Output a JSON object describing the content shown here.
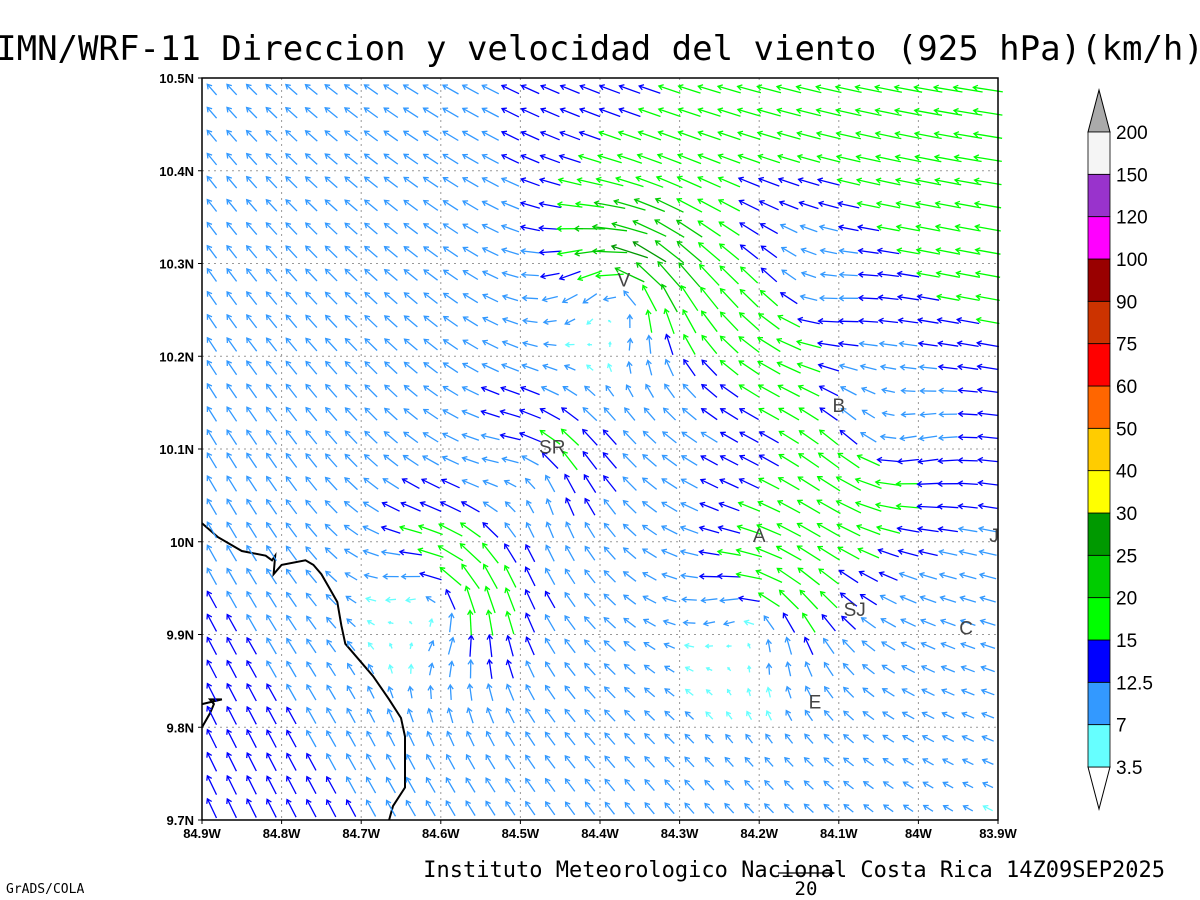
{
  "title": "IMN/WRF-11 Direccion y velocidad del viento (925 hPa)(km/h)",
  "footer": {
    "credit": "Instituto Meteorologico Nacional Costa Rica 14Z09SEP2025",
    "software": "GrADS/COLA",
    "reference_vector_label": "20"
  },
  "map": {
    "lon_range": [
      -84.9,
      -83.9
    ],
    "lat_range": [
      9.7,
      10.5
    ],
    "x_tick_labels": [
      "84.9W",
      "84.8W",
      "84.7W",
      "84.6W",
      "84.5W",
      "84.4W",
      "84.3W",
      "84.2W",
      "84.1W",
      "84W",
      "83.9W"
    ],
    "y_tick_labels": [
      "10.5N",
      "10.4N",
      "10.3N",
      "10.2N",
      "10.1N",
      "10N",
      "9.9N",
      "9.8N",
      "9.7N"
    ],
    "grid": "dotted",
    "places": [
      {
        "label": "V",
        "lon": -84.37,
        "lat": 10.275
      },
      {
        "label": "B",
        "lon": -84.1,
        "lat": 10.14
      },
      {
        "label": "SR",
        "lon": -84.46,
        "lat": 10.095
      },
      {
        "label": "A",
        "lon": -84.2,
        "lat": 10.0
      },
      {
        "label": "SJ",
        "lon": -84.08,
        "lat": 9.92
      },
      {
        "label": "C",
        "lon": -83.94,
        "lat": 9.9
      },
      {
        "label": "E",
        "lon": -84.13,
        "lat": 9.82
      },
      {
        "label": "J",
        "lon": -83.905,
        "lat": 10.0
      }
    ],
    "coastline": [
      [
        -84.9,
        10.02
      ],
      [
        -84.88,
        10.005
      ],
      [
        -84.85,
        9.99
      ],
      [
        -84.82,
        9.985
      ],
      [
        -84.812,
        9.98
      ],
      [
        -84.808,
        9.985
      ],
      [
        -84.81,
        9.965
      ],
      [
        -84.8,
        9.975
      ],
      [
        -84.77,
        9.98
      ],
      [
        -84.76,
        9.975
      ],
      [
        -84.75,
        9.965
      ],
      [
        -84.74,
        9.95
      ],
      [
        -84.73,
        9.935
      ],
      [
        -84.725,
        9.91
      ],
      [
        -84.72,
        9.89
      ],
      [
        -84.7,
        9.87
      ],
      [
        -84.685,
        9.855
      ],
      [
        -84.665,
        9.83
      ],
      [
        -84.65,
        9.81
      ],
      [
        -84.645,
        9.79
      ],
      [
        -84.645,
        9.76
      ],
      [
        -84.645,
        9.735
      ],
      [
        -84.66,
        9.715
      ],
      [
        -84.665,
        9.7
      ]
    ],
    "island_coast": [
      [
        -84.9,
        9.8
      ],
      [
        -84.89,
        9.815
      ],
      [
        -84.885,
        9.825
      ],
      [
        -84.89,
        9.83
      ],
      [
        -84.875,
        9.83
      ],
      [
        -84.9,
        9.825
      ]
    ],
    "wind_field": {
      "units": "km/h",
      "grid_step_lon": 0.025,
      "grid_step_lat": 0.025,
      "centers": [
        {
          "lon": -84.37,
          "lat": 10.27,
          "type": "cyclonic",
          "strength": 22
        },
        {
          "lon": -84.48,
          "lat": 10.08,
          "type": "cyclonic",
          "strength": 10
        },
        {
          "lon": -84.6,
          "lat": 9.94,
          "type": "cyclonic",
          "strength": 18
        },
        {
          "lon": -84.2,
          "lat": 9.92,
          "type": "cyclonic",
          "strength": 14
        },
        {
          "lon": -84.15,
          "lat": 10.25,
          "type": "anticyclonic",
          "strength": 8
        },
        {
          "lon": -84.05,
          "lat": 10.1,
          "type": "anticyclonic",
          "strength": 10
        }
      ]
    }
  },
  "colorbar": {
    "colors": [
      "#66ffff",
      "#3399ff",
      "#0000ff",
      "#00ff00",
      "#00cc00",
      "#009900",
      "#ffff00",
      "#ffcc00",
      "#ff6600",
      "#ff0000",
      "#cc3300",
      "#990000",
      "#ff00ff",
      "#9933cc",
      "#f5f5f5"
    ],
    "levels": [
      "3.5",
      "7",
      "12.5",
      "15",
      "20",
      "25",
      "30",
      "40",
      "50",
      "60",
      "75",
      "90",
      "100",
      "120",
      "150",
      "200"
    ],
    "overflow_color": "#aaaaaa"
  }
}
